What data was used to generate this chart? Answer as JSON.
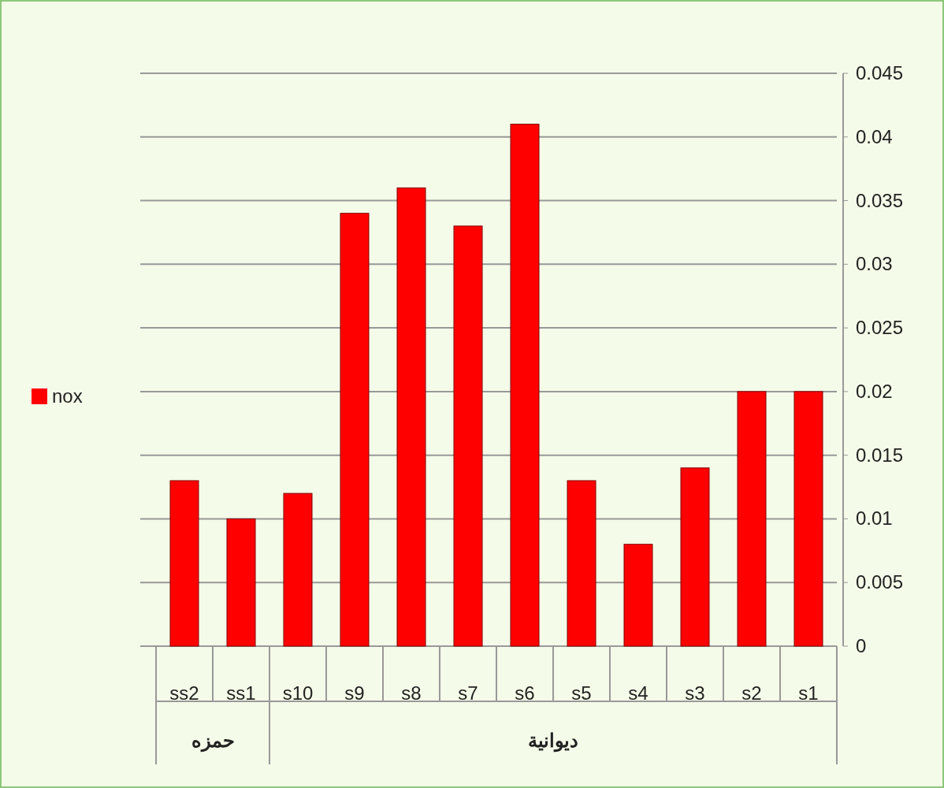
{
  "chart_data": {
    "type": "bar",
    "categories": [
      "ss2",
      "ss1",
      "s10",
      "s9",
      "s8",
      "s7",
      "s6",
      "s5",
      "s4",
      "s3",
      "s2",
      "s1"
    ],
    "series": [
      {
        "name": "nox",
        "color": "#ff0000",
        "values": [
          0.013,
          0.01,
          0.012,
          0.034,
          0.036,
          0.033,
          0.041,
          0.013,
          0.008,
          0.014,
          0.02,
          0.02
        ]
      }
    ],
    "ylim": [
      0,
      0.045
    ],
    "yticks": [
      0,
      0.005,
      0.01,
      0.015,
      0.02,
      0.025,
      0.03,
      0.035,
      0.04,
      0.045
    ],
    "grid": "y",
    "legend": "left",
    "annotations": [
      "حمزه",
      "ديوانية"
    ]
  }
}
